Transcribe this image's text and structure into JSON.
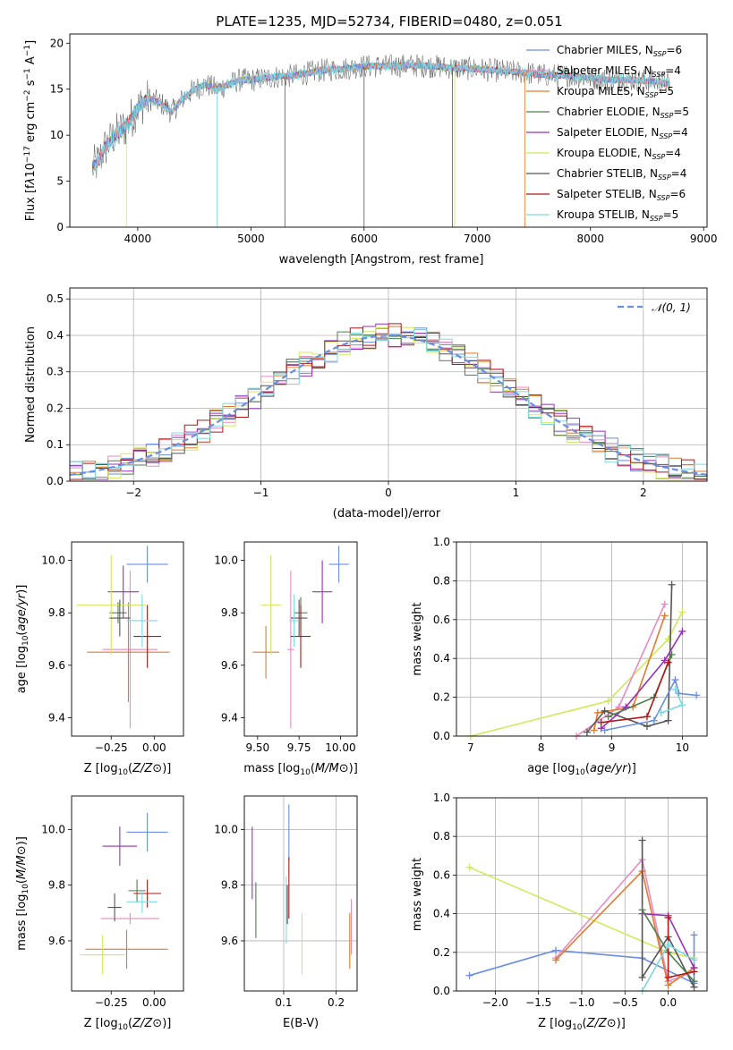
{
  "figure_title": "PLATE=1235, MJD=52734, FIBERID=0480, z=0.051",
  "colors": {
    "chabrier_miles": "#6a8ee0",
    "salpeter_miles": "#e98bc2",
    "kroupa_miles": "#e07b2d",
    "chabrier_elodie": "#4e7f4e",
    "salpeter_elodie": "#9b30b8",
    "kroupa_elodie": "#d2e85a",
    "chabrier_stelib": "#555555",
    "salpeter_stelib": "#b01818",
    "kroupa_stelib": "#7fd8e0",
    "grid": "#b0b0b0",
    "normal": "#6a8ee0"
  },
  "chart_data": [
    {
      "id": "spectrum",
      "type": "line",
      "title": "PLATE=1235, MJD=52734, FIBERID=0480, z=0.051",
      "xlabel": "wavelength [Angstrom, rest frame]",
      "ylabel_html": "Flux [f<tspan font-style='italic'>λ</tspan>10<tspan baseline-shift='super' font-size='9'>−17</tspan> erg cm<tspan baseline-shift='super' font-size='9'>−2</tspan> s<tspan baseline-shift='super' font-size='9'>−1</tspan> A<tspan baseline-shift='super' font-size='9'>−1</tspan>]",
      "xlim": [
        3400,
        9030
      ],
      "ylim": [
        0,
        21
      ],
      "xticks": [
        4000,
        5000,
        6000,
        7000,
        8000,
        9000
      ],
      "yticks": [
        0,
        5,
        10,
        15,
        20
      ],
      "grid": false,
      "legend_position": "upper-right",
      "continuum": {
        "x": [
          3600,
          3650,
          3700,
          3800,
          3900,
          4000,
          4100,
          4200,
          4300,
          4400,
          4500,
          4600,
          4700,
          4800,
          4900,
          5000,
          5200,
          5400,
          5600,
          5800,
          6000,
          6200,
          6400,
          6600,
          6800,
          7000,
          7200,
          7400,
          7600,
          7800,
          8000,
          8200,
          8400,
          8600,
          8700
        ],
        "y": [
          6.5,
          7.0,
          8.5,
          10.0,
          11.0,
          13.0,
          14.0,
          13.5,
          12.5,
          14.0,
          15.0,
          15.5,
          15.0,
          15.5,
          16.0,
          16.0,
          16.3,
          16.5,
          17.0,
          17.2,
          17.5,
          17.5,
          17.6,
          17.5,
          17.3,
          17.2,
          17.0,
          16.8,
          16.5,
          16.5,
          16.2,
          16.0,
          16.0,
          15.8,
          15.5
        ]
      },
      "series": [
        {
          "key": "chabrier_miles",
          "label": "Chabrier MILES, N",
          "sub": "SSP",
          "suffix": "=6"
        },
        {
          "key": "salpeter_miles",
          "label": "Salpeter MILES, N",
          "sub": "SSP",
          "suffix": "=4"
        },
        {
          "key": "kroupa_miles",
          "label": "Kroupa MILES, N",
          "sub": "SSP",
          "suffix": "=5"
        },
        {
          "key": "chabrier_elodie",
          "label": "Chabrier ELODIE, N",
          "sub": "SSP",
          "suffix": "=5"
        },
        {
          "key": "salpeter_elodie",
          "label": "Salpeter ELODIE, N",
          "sub": "SSP",
          "suffix": "=4"
        },
        {
          "key": "kroupa_elodie",
          "label": "Kroupa ELODIE, N",
          "sub": "SSP",
          "suffix": "=4"
        },
        {
          "key": "chabrier_stelib",
          "label": "Chabrier STELIB, N",
          "sub": "SSP",
          "suffix": "=4"
        },
        {
          "key": "salpeter_stelib",
          "label": "Salpeter STELIB, N",
          "sub": "SSP",
          "suffix": "=6"
        },
        {
          "key": "kroupa_stelib",
          "label": "Kroupa STELIB, N",
          "sub": "SSP",
          "suffix": "=5"
        }
      ]
    },
    {
      "id": "residuals",
      "type": "area",
      "xlabel": "(data-model)/error",
      "ylabel": "Normed distribution",
      "xlim": [
        -2.5,
        2.5
      ],
      "ylim": [
        0,
        0.53
      ],
      "xticks": [
        -2,
        -1,
        0,
        1,
        2
      ],
      "yticks": [
        0.0,
        0.1,
        0.2,
        0.3,
        0.4,
        0.5
      ],
      "grid": true,
      "legend_position": "upper-right",
      "legend_label": "𝒩(0, 1)",
      "bin_width": 0.1
    },
    {
      "id": "age_vs_Z",
      "type": "scatter",
      "xlabel": "Z [log10(Z/Z⊙)]",
      "ylabel": "age  [log10(age/yr)]",
      "xlim": [
        -0.48,
        0.17
      ],
      "ylim": [
        9.33,
        10.07
      ],
      "xticks": [
        -0.25,
        0.0
      ],
      "xticklabels": [
        "−0.25",
        "0.00"
      ],
      "yticks": [
        9.4,
        9.6,
        9.8,
        10.0
      ],
      "points": [
        {
          "key": "chabrier_miles",
          "x": -0.04,
          "y": 9.985,
          "xerr": 0.12,
          "yerr": 0.07
        },
        {
          "key": "salpeter_miles",
          "x": -0.14,
          "y": 9.66,
          "xerr": 0.16,
          "yerr": 0.3
        },
        {
          "key": "kroupa_miles",
          "x": -0.15,
          "y": 9.65,
          "xerr": 0.24,
          "yerr": 0.19
        },
        {
          "key": "chabrier_elodie",
          "x": -0.21,
          "y": 9.8,
          "xerr": 0.05,
          "yerr": 0.04
        },
        {
          "key": "salpeter_elodie",
          "x": -0.18,
          "y": 9.88,
          "xerr": 0.09,
          "yerr": 0.1
        },
        {
          "key": "kroupa_elodie",
          "x": -0.25,
          "y": 9.83,
          "xerr": 0.2,
          "yerr": 0.19
        },
        {
          "key": "chabrier_stelib",
          "x": -0.2,
          "y": 9.78,
          "xerr": 0.06,
          "yerr": 0.07
        },
        {
          "key": "salpeter_stelib",
          "x": -0.04,
          "y": 9.71,
          "xerr": 0.08,
          "yerr": 0.12
        },
        {
          "key": "kroupa_stelib",
          "x": -0.07,
          "y": 9.77,
          "xerr": 0.09,
          "yerr": 0.1
        }
      ]
    },
    {
      "id": "age_vs_mass",
      "type": "scatter",
      "xlabel": "mass [log10(M/M⊙)]",
      "ylabel": "",
      "xlim": [
        9.42,
        10.1
      ],
      "ylim": [
        9.33,
        10.07
      ],
      "xticks": [
        9.5,
        9.75,
        10.0
      ],
      "xticklabels": [
        "9.50",
        "9.75",
        "10.00"
      ],
      "yticks": [
        9.4,
        9.6,
        9.8,
        10.0
      ],
      "points": [
        {
          "key": "chabrier_miles",
          "x": 9.99,
          "y": 9.985,
          "xerr": 0.06,
          "yerr": 0.07
        },
        {
          "key": "salpeter_miles",
          "x": 9.7,
          "y": 9.66,
          "xerr": 0.02,
          "yerr": 0.3
        },
        {
          "key": "kroupa_miles",
          "x": 9.55,
          "y": 9.65,
          "xerr": 0.08,
          "yerr": 0.1
        },
        {
          "key": "chabrier_elodie",
          "x": 9.76,
          "y": 9.8,
          "xerr": 0.04,
          "yerr": 0.06
        },
        {
          "key": "salpeter_elodie",
          "x": 9.89,
          "y": 9.88,
          "xerr": 0.06,
          "yerr": 0.12
        },
        {
          "key": "kroupa_elodie",
          "x": 9.58,
          "y": 9.83,
          "xerr": 0.06,
          "yerr": 0.19
        },
        {
          "key": "chabrier_stelib",
          "x": 9.75,
          "y": 9.78,
          "xerr": 0.05,
          "yerr": 0.07
        },
        {
          "key": "salpeter_stelib",
          "x": 9.76,
          "y": 9.71,
          "xerr": 0.06,
          "yerr": 0.12
        },
        {
          "key": "kroupa_stelib",
          "x": 9.72,
          "y": 9.77,
          "xerr": 0.03,
          "yerr": 0.1
        }
      ]
    },
    {
      "id": "weight_vs_age",
      "type": "line",
      "xlabel": "age  [log10(age/yr)]",
      "ylabel": "mass weight",
      "xlim": [
        6.8,
        10.35
      ],
      "ylim": [
        0,
        1.0
      ],
      "xticks": [
        7,
        8,
        9,
        10
      ],
      "yticks": [
        0.0,
        0.2,
        0.4,
        0.6,
        0.8,
        1.0
      ],
      "grid": true,
      "series": [
        {
          "key": "kroupa_elodie",
          "points": [
            [
              7.0,
              0.0
            ],
            [
              8.95,
              0.18
            ],
            [
              9.8,
              0.5
            ],
            [
              10.0,
              0.64
            ]
          ]
        },
        {
          "key": "salpeter_miles",
          "points": [
            [
              8.5,
              0.0
            ],
            [
              9.1,
              0.15
            ],
            [
              9.75,
              0.68
            ]
          ]
        },
        {
          "key": "kroupa_miles",
          "points": [
            [
              8.75,
              0.03
            ],
            [
              8.8,
              0.12
            ],
            [
              9.3,
              0.15
            ],
            [
              9.75,
              0.62
            ]
          ]
        },
        {
          "key": "chabrier_stelib",
          "points": [
            [
              8.65,
              0.02
            ],
            [
              8.9,
              0.13
            ],
            [
              9.5,
              0.05
            ],
            [
              9.8,
              0.08
            ],
            [
              9.85,
              0.78
            ]
          ]
        },
        {
          "key": "salpeter_elodie",
          "points": [
            [
              8.85,
              0.04
            ],
            [
              9.2,
              0.15
            ],
            [
              9.75,
              0.39
            ],
            [
              10.0,
              0.54
            ]
          ]
        },
        {
          "key": "chabrier_elodie",
          "points": [
            [
              8.95,
              0.1
            ],
            [
              9.6,
              0.2
            ],
            [
              9.85,
              0.42
            ]
          ]
        },
        {
          "key": "salpeter_stelib",
          "points": [
            [
              8.85,
              0.07
            ],
            [
              9.5,
              0.1
            ],
            [
              9.8,
              0.38
            ]
          ]
        },
        {
          "key": "chabrier_miles",
          "points": [
            [
              8.9,
              0.03
            ],
            [
              9.6,
              0.08
            ],
            [
              9.9,
              0.29
            ],
            [
              9.95,
              0.22
            ],
            [
              10.2,
              0.21
            ]
          ]
        },
        {
          "key": "kroupa_stelib",
          "points": [
            [
              9.9,
              0.24
            ],
            [
              10.0,
              0.16
            ],
            [
              9.7,
              0.12
            ]
          ]
        }
      ]
    },
    {
      "id": "mass_vs_Z",
      "type": "scatter",
      "xlabel": "Z [log10(Z/Z⊙)]",
      "ylabel": "mass [log10(M/M⊙)]",
      "xlim": [
        -0.48,
        0.17
      ],
      "ylim": [
        9.42,
        10.12
      ],
      "xticks": [
        -0.25,
        0.0
      ],
      "xticklabels": [
        "−0.25",
        "0.00"
      ],
      "yticks": [
        9.6,
        9.8,
        10.0
      ],
      "points": [
        {
          "key": "chabrier_miles",
          "x": -0.04,
          "y": 9.99,
          "xerr": 0.12,
          "yerr": 0.07
        },
        {
          "key": "salpeter_miles",
          "x": -0.14,
          "y": 9.68,
          "xerr": 0.17,
          "yerr": 0.02
        },
        {
          "key": "kroupa_miles",
          "x": -0.16,
          "y": 9.57,
          "xerr": 0.24,
          "yerr": 0.07
        },
        {
          "key": "chabrier_elodie",
          "x": -0.1,
          "y": 9.78,
          "xerr": 0.05,
          "yerr": 0.04
        },
        {
          "key": "salpeter_elodie",
          "x": -0.2,
          "y": 9.94,
          "xerr": 0.1,
          "yerr": 0.07
        },
        {
          "key": "kroupa_elodie",
          "x": -0.3,
          "y": 9.55,
          "xerr": 0.13,
          "yerr": 0.07
        },
        {
          "key": "chabrier_stelib",
          "x": -0.23,
          "y": 9.72,
          "xerr": 0.04,
          "yerr": 0.05
        },
        {
          "key": "salpeter_stelib",
          "x": -0.04,
          "y": 9.77,
          "xerr": 0.08,
          "yerr": 0.05
        },
        {
          "key": "kroupa_stelib",
          "x": -0.07,
          "y": 9.74,
          "xerr": 0.09,
          "yerr": 0.04
        }
      ]
    },
    {
      "id": "mass_vs_ebv",
      "type": "scatter",
      "xlabel": "E(B-V)",
      "ylabel": "",
      "xlim": [
        0.025,
        0.24
      ],
      "ylim": [
        9.42,
        10.12
      ],
      "xticks": [
        0.1,
        0.2
      ],
      "xticklabels": [
        "0.1",
        "0.2"
      ],
      "yticks": [
        9.6,
        9.8,
        10.0
      ],
      "grid": true,
      "points": [
        {
          "key": "chabrier_miles",
          "x": 0.11,
          "y": 9.99,
          "xerr": 0,
          "yerr": 0.1
        },
        {
          "key": "salpeter_miles",
          "x": 0.229,
          "y": 9.65,
          "xerr": 0,
          "yerr": 0.1
        },
        {
          "key": "kroupa_miles",
          "x": 0.226,
          "y": 9.6,
          "xerr": 0,
          "yerr": 0.1
        },
        {
          "key": "chabrier_elodie",
          "x": 0.047,
          "y": 9.71,
          "xerr": 0,
          "yerr": 0.1
        },
        {
          "key": "salpeter_elodie",
          "x": 0.04,
          "y": 9.88,
          "xerr": 0,
          "yerr": 0.13
        },
        {
          "key": "kroupa_elodie",
          "x": 0.135,
          "y": 9.59,
          "xerr": 0,
          "yerr": 0.11
        },
        {
          "key": "chabrier_stelib",
          "x": 0.107,
          "y": 9.73,
          "xerr": 0,
          "yerr": 0.07
        },
        {
          "key": "salpeter_stelib",
          "x": 0.11,
          "y": 9.79,
          "xerr": 0,
          "yerr": 0.11
        },
        {
          "key": "kroupa_stelib",
          "x": 0.105,
          "y": 9.71,
          "xerr": 0,
          "yerr": 0.12
        }
      ]
    },
    {
      "id": "weight_vs_Z",
      "type": "line",
      "xlabel": "Z [log10(Z/Z⊙)]",
      "ylabel": "mass weight",
      "xlim": [
        -2.45,
        0.45
      ],
      "ylim": [
        0,
        1.0
      ],
      "xticks": [
        -2.0,
        -1.5,
        -1.0,
        -0.5,
        0.0
      ],
      "xticklabels": [
        "−2.0",
        "−1.5",
        "−1.0",
        "−0.5",
        "0.0"
      ],
      "yticks": [
        0.0,
        0.2,
        0.4,
        0.6,
        0.8,
        1.0
      ],
      "grid": true,
      "series": [
        {
          "key": "kroupa_elodie",
          "points": [
            [
              -2.3,
              0.64
            ],
            [
              0.0,
              0.2
            ],
            [
              0.3,
              0.17
            ]
          ]
        },
        {
          "key": "chabrier_miles",
          "points": [
            [
              -2.3,
              0.08
            ],
            [
              -1.3,
              0.21
            ],
            [
              -0.3,
              0.17
            ],
            [
              0.3,
              0.04
            ],
            [
              0.3,
              0.29
            ]
          ]
        },
        {
          "key": "salpeter_miles",
          "points": [
            [
              -1.3,
              0.17
            ],
            [
              -0.3,
              0.68
            ],
            [
              0.0,
              0.05
            ],
            [
              0.3,
              0.1
            ]
          ]
        },
        {
          "key": "kroupa_miles",
          "points": [
            [
              -1.3,
              0.16
            ],
            [
              -0.3,
              0.62
            ],
            [
              0.0,
              0.03
            ],
            [
              0.3,
              0.12
            ]
          ]
        },
        {
          "key": "chabrier_stelib",
          "points": [
            [
              -0.3,
              0.78
            ],
            [
              -0.3,
              0.07
            ],
            [
              0.0,
              0.28
            ],
            [
              0.3,
              0.02
            ]
          ]
        },
        {
          "key": "salpeter_elodie",
          "points": [
            [
              -0.3,
              0.4
            ],
            [
              0.0,
              0.39
            ],
            [
              0.3,
              0.12
            ]
          ]
        },
        {
          "key": "chabrier_elodie",
          "points": [
            [
              -0.3,
              0.42
            ],
            [
              0.0,
              0.2
            ],
            [
              0.3,
              0.05
            ]
          ]
        },
        {
          "key": "salpeter_stelib",
          "points": [
            [
              0.0,
              0.38
            ],
            [
              0.0,
              0.07
            ],
            [
              0.3,
              0.1
            ]
          ]
        },
        {
          "key": "kroupa_stelib",
          "points": [
            [
              -0.3,
              0.0
            ],
            [
              0.0,
              0.24
            ],
            [
              0.3,
              0.16
            ]
          ]
        }
      ]
    }
  ]
}
